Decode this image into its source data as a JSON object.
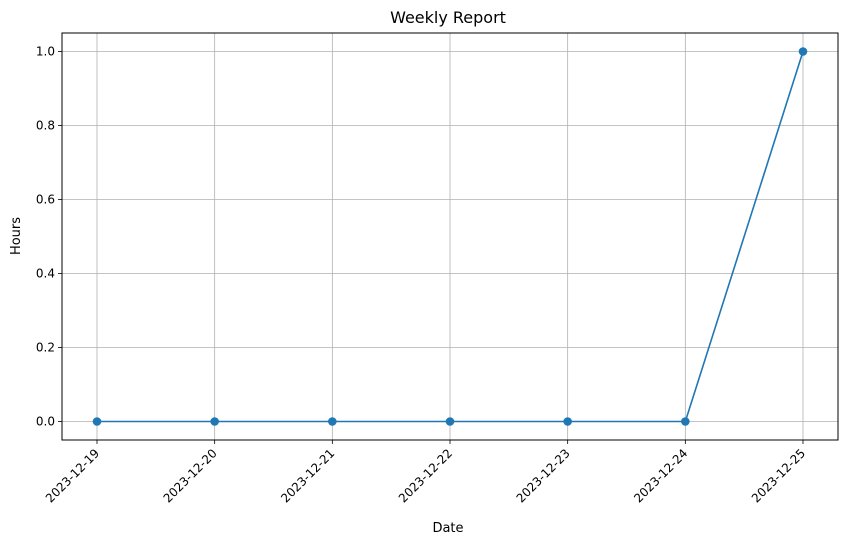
{
  "chart_data": {
    "type": "line",
    "title": "Weekly Report",
    "xlabel": "Date",
    "ylabel": "Hours",
    "categories": [
      "2023-12-19",
      "2023-12-20",
      "2023-12-21",
      "2023-12-22",
      "2023-12-23",
      "2023-12-24",
      "2023-12-25"
    ],
    "series": [
      {
        "values": [
          0,
          0,
          0,
          0,
          0,
          0,
          1.0
        ],
        "color": "#1f77b4",
        "marker": "circle"
      }
    ],
    "ylim": [
      -0.05,
      1.05
    ],
    "yticks": [
      "0.0",
      "0.2",
      "0.4",
      "0.6",
      "0.8",
      "1.0"
    ],
    "grid": true,
    "legend": false
  }
}
